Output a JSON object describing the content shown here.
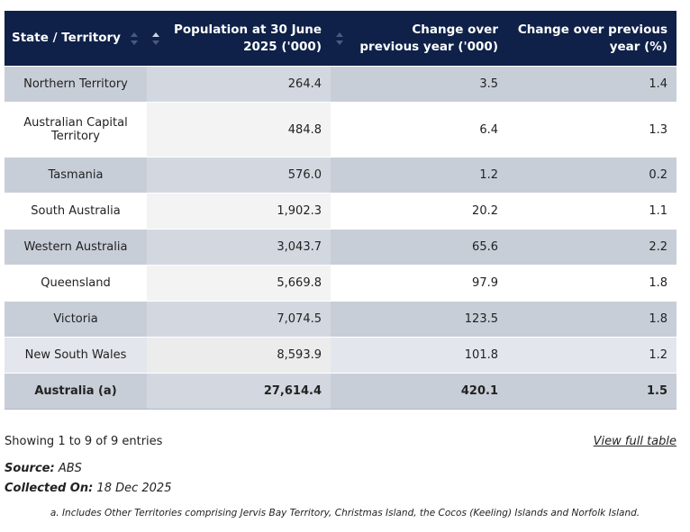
{
  "table": {
    "headers": {
      "state": "State / Territory",
      "population": "Population at 30 June 2025 ('000)",
      "change_abs": "Change over previous year ('000)",
      "change_pct": "Change over previous year (%)"
    },
    "rows": [
      {
        "state": "Northern Territory",
        "population": "264.4",
        "change_abs": "3.5",
        "change_pct": "1.4"
      },
      {
        "state": "Australian Capital Territory",
        "population": "484.8",
        "change_abs": "6.4",
        "change_pct": "1.3"
      },
      {
        "state": "Tasmania",
        "population": "576.0",
        "change_abs": "1.2",
        "change_pct": "0.2"
      },
      {
        "state": "South Australia",
        "population": "1,902.3",
        "change_abs": "20.2",
        "change_pct": "1.1"
      },
      {
        "state": "Western Australia",
        "population": "3,043.7",
        "change_abs": "65.6",
        "change_pct": "2.2"
      },
      {
        "state": "Queensland",
        "population": "5,669.8",
        "change_abs": "97.9",
        "change_pct": "1.8"
      },
      {
        "state": "Victoria",
        "population": "7,074.5",
        "change_abs": "123.5",
        "change_pct": "1.8"
      },
      {
        "state": "New South Wales",
        "population": "8,593.9",
        "change_abs": "101.8",
        "change_pct": "1.2"
      }
    ],
    "total": {
      "state": "Australia (a)",
      "population": "27,614.4",
      "change_abs": "420.1",
      "change_pct": "1.5"
    }
  },
  "footer": {
    "entries_info": "Showing 1 to 9 of 9 entries",
    "view_full_table": "View full table",
    "source_label": "Source:",
    "source_value": "ABS",
    "collected_label": "Collected On:",
    "collected_value": "18 Dec 2025",
    "footnote": "a. Includes Other Territories comprising Jervis Bay Territory, Christmas Island, the Cocos (Keeling) Islands and Norfolk Island."
  },
  "icons": {
    "sort": "sort-arrows-icon",
    "sort_active": "sort-ascending-icon"
  },
  "colors": {
    "header_bg": "#0f2148",
    "row_shaded": "#c8ced8",
    "row_plain": "#ffffff"
  }
}
